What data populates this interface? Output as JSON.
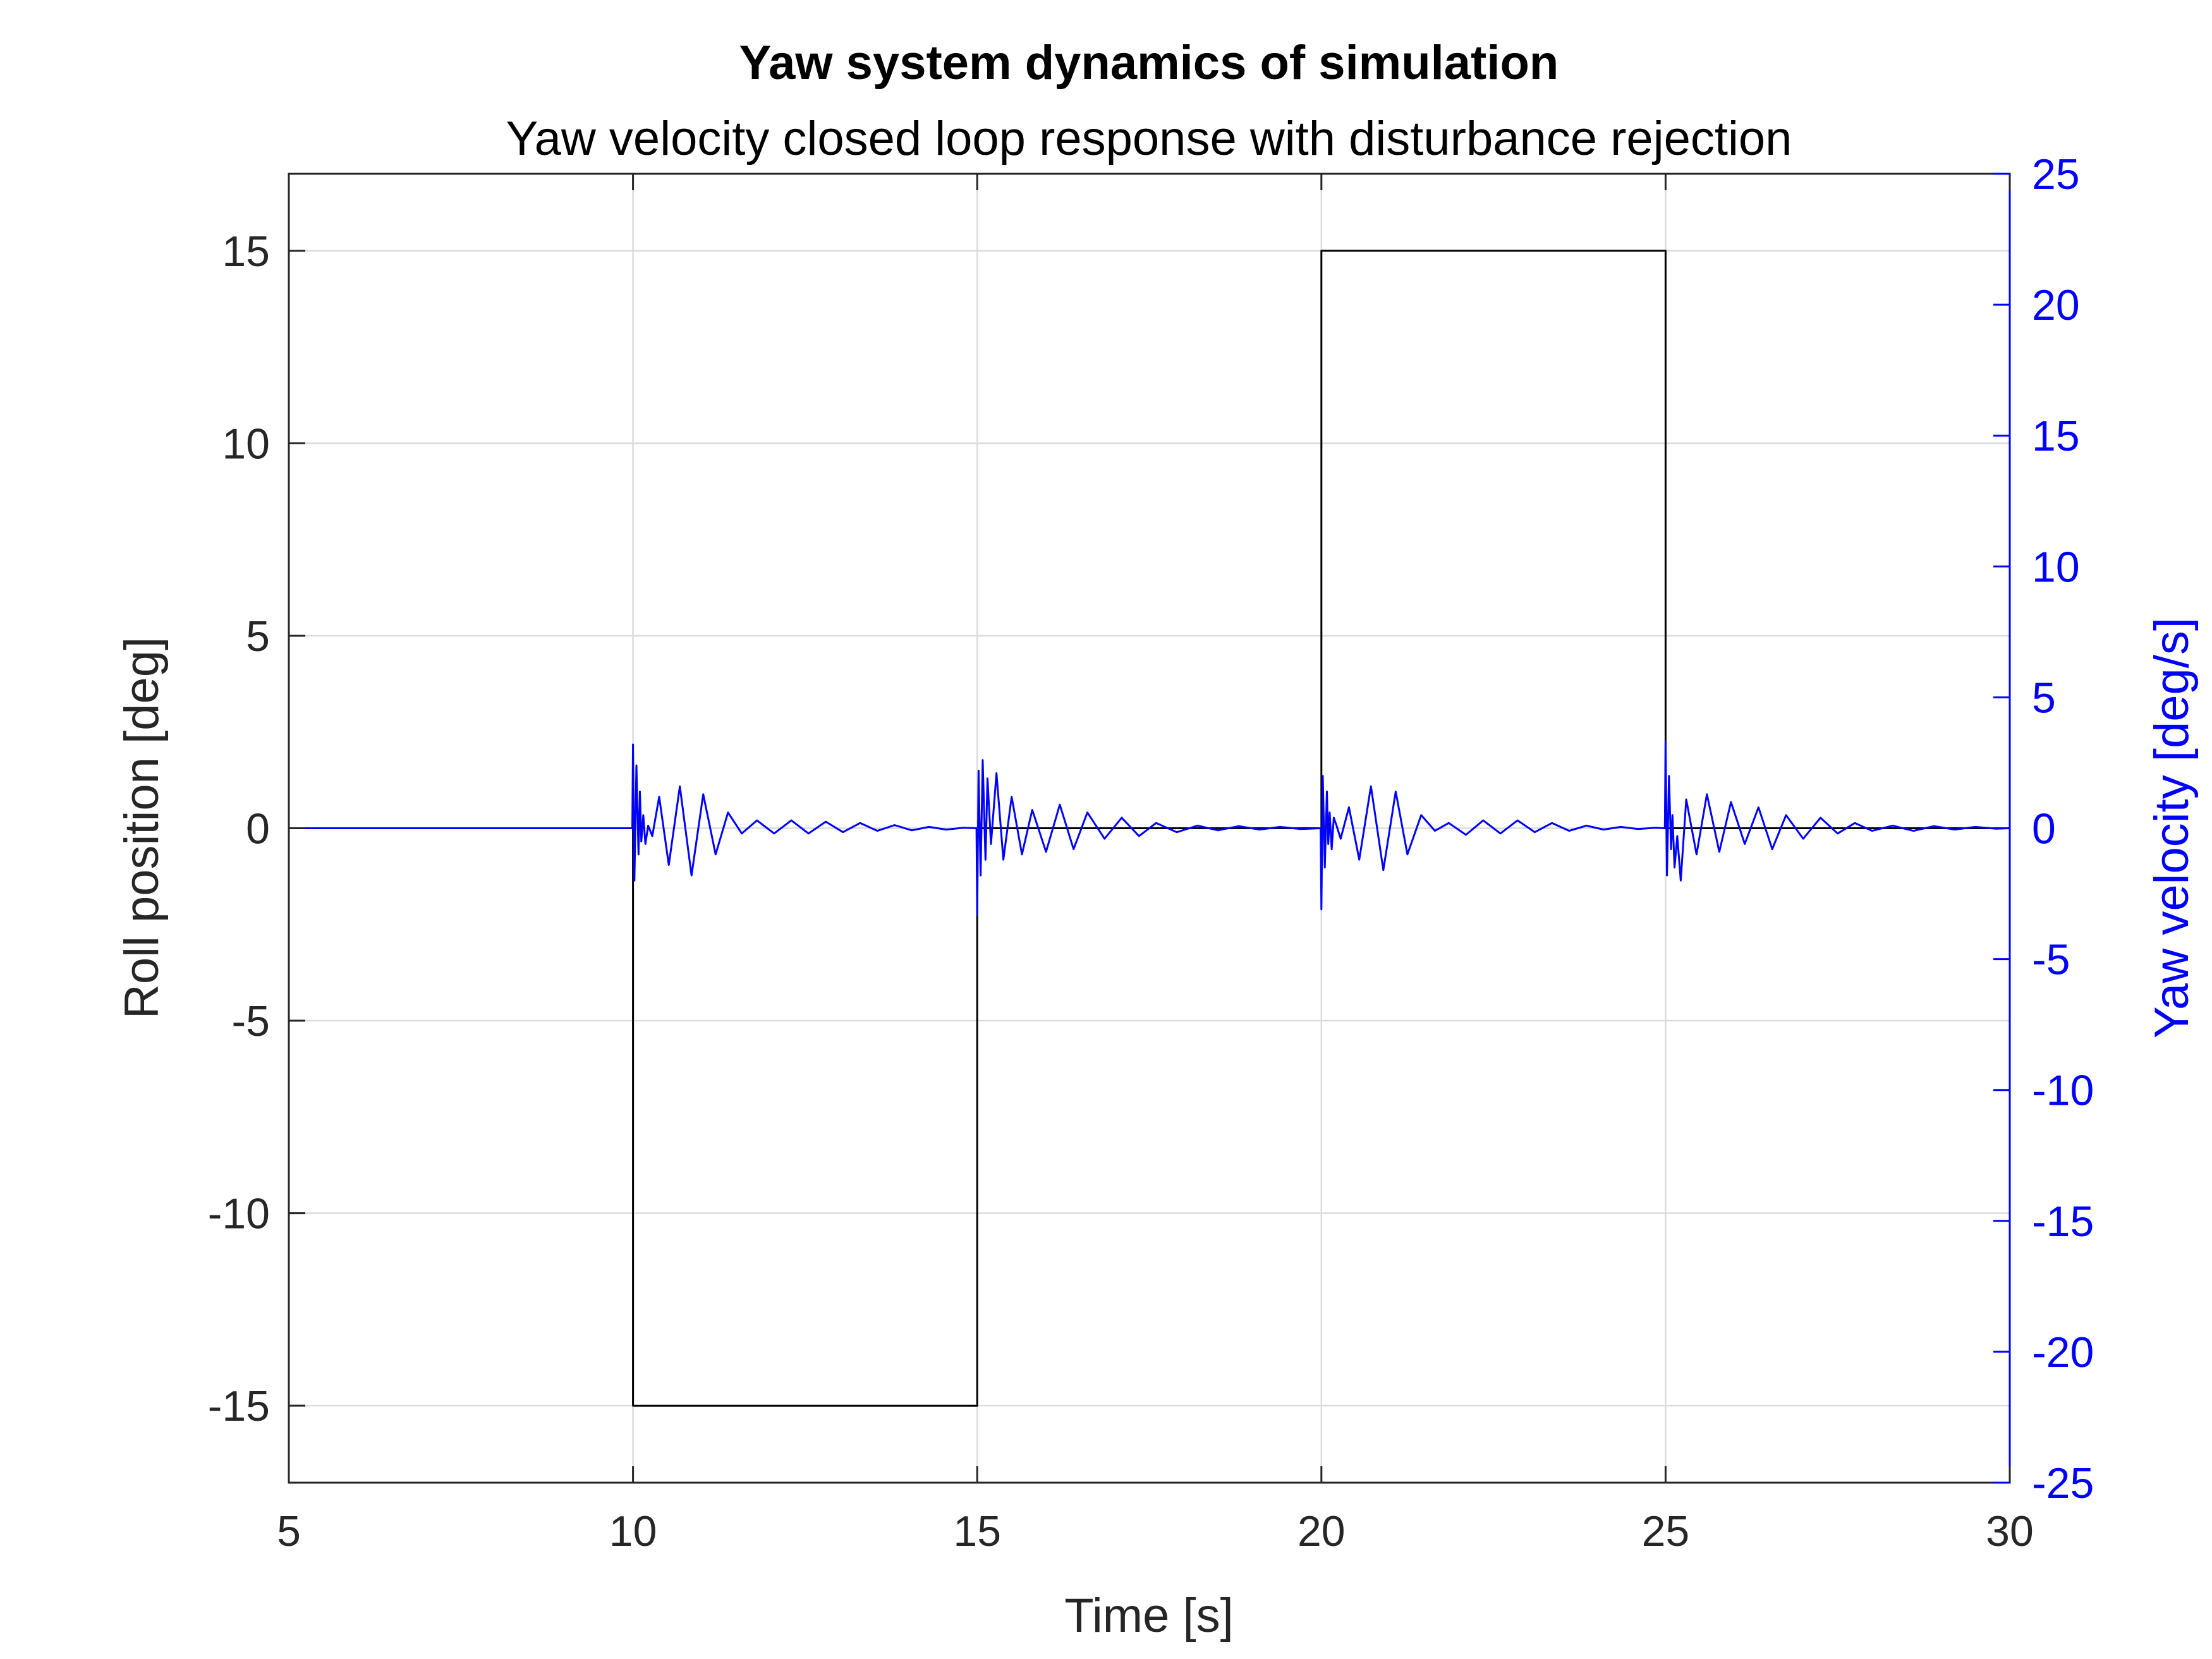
{
  "chart_data": {
    "type": "line",
    "title": "Yaw system dynamics of simulation",
    "subtitle": "Yaw velocity closed loop response with disturbance rejection",
    "xlabel": "Time [s]",
    "ylabel_left": "Roll position [deg]",
    "ylabel_right": "Yaw velocity [deg/s]",
    "xlim": [
      5,
      30
    ],
    "ylim_left": [
      -17,
      17
    ],
    "ylim_right": [
      -25,
      25
    ],
    "xticks": [
      5,
      10,
      15,
      20,
      25,
      30
    ],
    "yticks_left": [
      -15,
      -10,
      -5,
      0,
      5,
      10,
      15
    ],
    "yticks_right": [
      -25,
      -20,
      -15,
      -10,
      -5,
      0,
      5,
      10,
      15,
      20,
      25
    ],
    "grid": true,
    "colors": {
      "left_axis": "#262626",
      "right_axis": "#0000ff",
      "grid": "#dcdcdc"
    },
    "series": [
      {
        "axis": "left",
        "color": "#000000",
        "step": true,
        "x": [
          5,
          10,
          10,
          15,
          15,
          20,
          20,
          25,
          25,
          30
        ],
        "y": [
          0,
          0,
          -15,
          -15,
          0,
          0,
          15,
          15,
          0,
          0
        ]
      },
      {
        "axis": "right",
        "color": "#0000ff",
        "x": [
          5,
          9.99,
          10.0,
          10.02,
          10.05,
          10.08,
          10.1,
          10.12,
          10.15,
          10.18,
          10.22,
          10.28,
          10.38,
          10.52,
          10.68,
          10.85,
          11.02,
          11.2,
          11.38,
          11.58,
          11.8,
          12.05,
          12.3,
          12.55,
          12.8,
          13.05,
          13.3,
          13.55,
          13.8,
          14.05,
          14.3,
          14.55,
          14.8,
          14.99,
          15.0,
          15.02,
          15.05,
          15.08,
          15.12,
          15.15,
          15.2,
          15.28,
          15.38,
          15.5,
          15.65,
          15.8,
          16.0,
          16.2,
          16.4,
          16.6,
          16.85,
          17.1,
          17.35,
          17.6,
          17.9,
          18.2,
          18.5,
          18.8,
          19.1,
          19.4,
          19.7,
          19.99,
          20.0,
          20.02,
          20.05,
          20.08,
          20.1,
          20.12,
          20.15,
          20.18,
          20.22,
          20.28,
          20.4,
          20.55,
          20.72,
          20.9,
          21.08,
          21.25,
          21.45,
          21.65,
          21.85,
          22.1,
          22.35,
          22.6,
          22.85,
          23.1,
          23.35,
          23.6,
          23.85,
          24.1,
          24.35,
          24.6,
          24.85,
          24.99,
          25.0,
          25.02,
          25.05,
          25.08,
          25.1,
          25.13,
          25.17,
          25.22,
          25.3,
          25.45,
          25.6,
          25.78,
          25.95,
          26.15,
          26.35,
          26.55,
          26.75,
          27.0,
          27.25,
          27.5,
          27.75,
          28.0,
          28.3,
          28.6,
          28.9,
          29.2,
          29.5,
          29.8,
          30
        ],
        "y": [
          0,
          0,
          3.2,
          -2.0,
          2.4,
          -1.0,
          1.4,
          -0.5,
          0.5,
          -0.6,
          0.1,
          -0.3,
          1.2,
          -1.4,
          1.6,
          -1.8,
          1.3,
          -1.0,
          0.6,
          -0.2,
          0.3,
          -0.2,
          0.3,
          -0.2,
          0.25,
          -0.15,
          0.2,
          -0.1,
          0.12,
          -0.08,
          0.05,
          -0.05,
          0.02,
          0,
          -3.3,
          2.2,
          -1.8,
          2.6,
          -1.2,
          1.9,
          -0.6,
          2.1,
          -1.2,
          1.2,
          -1.0,
          0.7,
          -0.9,
          0.9,
          -0.8,
          0.6,
          -0.4,
          0.4,
          -0.3,
          0.2,
          -0.15,
          0.1,
          -0.08,
          0.08,
          -0.05,
          0.05,
          -0.03,
          0,
          -3.1,
          2.0,
          -1.5,
          1.4,
          -0.6,
          0.6,
          -0.8,
          0.4,
          0.1,
          -0.4,
          0.8,
          -1.2,
          1.6,
          -1.6,
          1.4,
          -1.0,
          0.5,
          -0.1,
          0.2,
          -0.25,
          0.3,
          -0.2,
          0.3,
          -0.15,
          0.2,
          -0.1,
          0.1,
          -0.05,
          0.05,
          -0.03,
          0.02,
          0,
          3.3,
          -1.8,
          2.0,
          -0.8,
          0.5,
          -1.5,
          -0.3,
          -2.0,
          1.1,
          -1.0,
          1.3,
          -0.9,
          1.0,
          -0.6,
          0.8,
          -0.8,
          0.5,
          -0.4,
          0.4,
          -0.2,
          0.2,
          -0.1,
          0.1,
          -0.1,
          0.08,
          -0.05,
          0.05,
          -0.02,
          0
        ]
      }
    ]
  }
}
